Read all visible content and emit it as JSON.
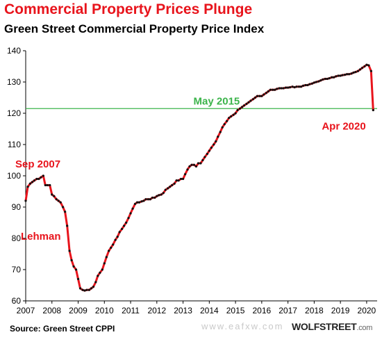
{
  "header": {
    "title": "Commercial Property Prices Plunge",
    "subtitle": "Green Street Commercial Property Price Index"
  },
  "footer": {
    "source": "Source: Green Street CPPI",
    "brand_main": "WOLFSTREET",
    "brand_domain": ".com",
    "watermark": "www.eafxw.com"
  },
  "colors": {
    "title": "#e8141c",
    "line": "#e8141c",
    "markers": "#111111",
    "reference_line": "#3cb44b",
    "annotation_red": "#e8141c",
    "annotation_green": "#3cb44b"
  },
  "chart_data": {
    "type": "line",
    "title": "Commercial Property Prices Plunge",
    "subtitle": "Green Street Commercial Property Price Index",
    "xlabel": "",
    "ylabel": "",
    "xlim": [
      2007,
      2020.4
    ],
    "ylim": [
      60,
      140
    ],
    "x_ticks": [
      "2007",
      "2008",
      "2009",
      "2010",
      "2011",
      "2012",
      "2013",
      "2014",
      "2015",
      "2016",
      "2017",
      "2018",
      "2019",
      "2020"
    ],
    "y_ticks": [
      60,
      70,
      80,
      90,
      100,
      110,
      120,
      130,
      140
    ],
    "grid": false,
    "reference_line": {
      "y": 121.5
    },
    "annotations": [
      {
        "text": "Sep 2007",
        "x": 2007.67,
        "y": 100.0,
        "color": "#e8141c"
      },
      {
        "text": "Lehman",
        "x": 2008.71,
        "y": 88.0,
        "color": "#e8141c"
      },
      {
        "text": "May 2015",
        "x": 2015.33,
        "y": 121.5,
        "color": "#3cb44b"
      },
      {
        "text": "Apr 2020",
        "x": 2020.25,
        "y": 121.0,
        "color": "#e8141c"
      }
    ],
    "series": [
      {
        "x": [
          2007.0,
          2007.08,
          2007.17,
          2007.25,
          2007.33,
          2007.42,
          2007.5,
          2007.58,
          2007.67,
          2007.75,
          2007.83,
          2007.92,
          2008.0,
          2008.08,
          2008.17,
          2008.25,
          2008.33,
          2008.42,
          2008.5,
          2008.58,
          2008.67,
          2008.75,
          2008.83,
          2008.92,
          2009.0,
          2009.08,
          2009.17,
          2009.25,
          2009.33,
          2009.42,
          2009.5,
          2009.58,
          2009.67,
          2009.75,
          2009.83,
          2009.92,
          2010.0,
          2010.08,
          2010.17,
          2010.25,
          2010.33,
          2010.42,
          2010.5,
          2010.58,
          2010.67,
          2010.75,
          2010.83,
          2010.92,
          2011.0,
          2011.08,
          2011.17,
          2011.25,
          2011.33,
          2011.42,
          2011.5,
          2011.58,
          2011.67,
          2011.75,
          2011.83,
          2011.92,
          2012.0,
          2012.08,
          2012.17,
          2012.25,
          2012.33,
          2012.42,
          2012.5,
          2012.58,
          2012.67,
          2012.75,
          2012.83,
          2012.92,
          2013.0,
          2013.08,
          2013.17,
          2013.25,
          2013.33,
          2013.42,
          2013.5,
          2013.58,
          2013.67,
          2013.75,
          2013.83,
          2013.92,
          2014.0,
          2014.08,
          2014.17,
          2014.25,
          2014.33,
          2014.42,
          2014.5,
          2014.58,
          2014.67,
          2014.75,
          2014.83,
          2014.92,
          2015.0,
          2015.08,
          2015.17,
          2015.25,
          2015.33,
          2015.42,
          2015.5,
          2015.58,
          2015.67,
          2015.75,
          2015.83,
          2015.92,
          2016.0,
          2016.08,
          2016.17,
          2016.25,
          2016.33,
          2016.42,
          2016.5,
          2016.58,
          2016.67,
          2016.75,
          2016.83,
          2016.92,
          2017.0,
          2017.08,
          2017.17,
          2017.25,
          2017.33,
          2017.42,
          2017.5,
          2017.58,
          2017.67,
          2017.75,
          2017.83,
          2017.92,
          2018.0,
          2018.08,
          2018.17,
          2018.25,
          2018.33,
          2018.42,
          2018.5,
          2018.58,
          2018.67,
          2018.75,
          2018.83,
          2018.92,
          2019.0,
          2019.08,
          2019.17,
          2019.25,
          2019.33,
          2019.42,
          2019.5,
          2019.58,
          2019.67,
          2019.75,
          2019.83,
          2019.92,
          2020.0,
          2020.08,
          2020.17,
          2020.25
        ],
        "values": [
          92.0,
          96.5,
          97.5,
          98.0,
          98.5,
          99.0,
          99.0,
          99.5,
          100.0,
          97.0,
          97.0,
          97.0,
          94.0,
          93.5,
          92.5,
          92.0,
          91.5,
          90.0,
          88.5,
          84.0,
          76.0,
          73.0,
          71.0,
          70.0,
          67.0,
          64.0,
          63.5,
          63.3,
          63.5,
          63.5,
          64.0,
          64.5,
          66.0,
          68.0,
          69.0,
          70.0,
          72.0,
          74.0,
          76.0,
          77.0,
          78.0,
          79.5,
          80.5,
          82.0,
          83.0,
          84.0,
          85.0,
          86.5,
          88.0,
          89.5,
          91.0,
          91.5,
          91.5,
          91.8,
          92.0,
          92.5,
          92.5,
          92.5,
          93.0,
          93.0,
          93.5,
          93.8,
          94.0,
          94.5,
          95.5,
          96.0,
          96.5,
          97.0,
          97.5,
          98.5,
          98.5,
          99.0,
          99.0,
          100.5,
          102.0,
          103.0,
          103.5,
          103.5,
          103.0,
          104.0,
          104.0,
          105.0,
          106.0,
          107.0,
          108.0,
          109.0,
          110.0,
          111.0,
          112.5,
          114.0,
          115.5,
          116.5,
          117.5,
          118.5,
          119.0,
          119.5,
          120.0,
          121.0,
          121.5,
          122.0,
          122.5,
          123.0,
          123.5,
          124.0,
          124.5,
          125.0,
          125.5,
          125.5,
          125.5,
          126.0,
          126.5,
          127.0,
          127.5,
          127.5,
          127.5,
          127.8,
          128.0,
          128.0,
          128.0,
          128.2,
          128.2,
          128.3,
          128.5,
          128.3,
          128.5,
          128.5,
          128.5,
          128.8,
          129.0,
          129.0,
          129.3,
          129.5,
          129.8,
          130.0,
          130.2,
          130.5,
          130.8,
          131.0,
          131.0,
          131.2,
          131.5,
          131.5,
          131.8,
          132.0,
          132.0,
          132.2,
          132.3,
          132.5,
          132.5,
          132.7,
          133.0,
          133.2,
          133.5,
          134.0,
          134.5,
          135.0,
          135.5,
          135.3,
          133.5,
          121.0
        ]
      }
    ]
  }
}
